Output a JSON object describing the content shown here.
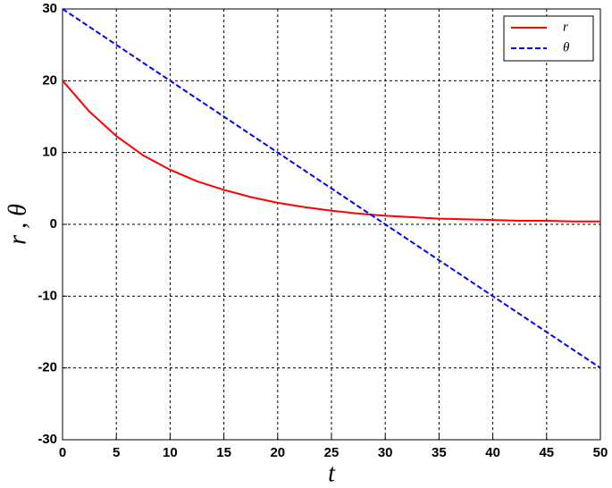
{
  "chart_data": {
    "type": "line",
    "x": [
      0,
      2.5,
      5,
      7.5,
      10,
      12.5,
      15,
      17.5,
      20,
      22.5,
      25,
      27.5,
      30,
      32.5,
      35,
      37.5,
      40,
      42.5,
      45,
      47.5,
      50
    ],
    "series": [
      {
        "name": "r",
        "color": "#ff0000",
        "dash": "solid",
        "values": [
          20,
          15.7,
          12.3,
          9.6,
          7.6,
          6.0,
          4.8,
          3.8,
          3.0,
          2.4,
          1.9,
          1.5,
          1.2,
          1.0,
          0.8,
          0.7,
          0.6,
          0.5,
          0.5,
          0.4,
          0.4
        ]
      },
      {
        "name": "θ",
        "color": "#0000ff",
        "dash": "dashed",
        "values": [
          30,
          27.5,
          25,
          22.5,
          20,
          17.5,
          15,
          12.5,
          10,
          7.5,
          5,
          2.5,
          0,
          -2.5,
          -5,
          -7.5,
          -10,
          -12.5,
          -15,
          -17.5,
          -20
        ]
      }
    ],
    "x_label": "t",
    "y_label": "r , θ",
    "xlim": [
      0,
      50
    ],
    "xticks": [
      0,
      5,
      10,
      15,
      20,
      25,
      30,
      35,
      40,
      45,
      50
    ],
    "ylim": [
      -30,
      30
    ],
    "yticks": [
      -30,
      -20,
      -10,
      0,
      10,
      20,
      30
    ],
    "grid": true,
    "legend": "upper right"
  }
}
